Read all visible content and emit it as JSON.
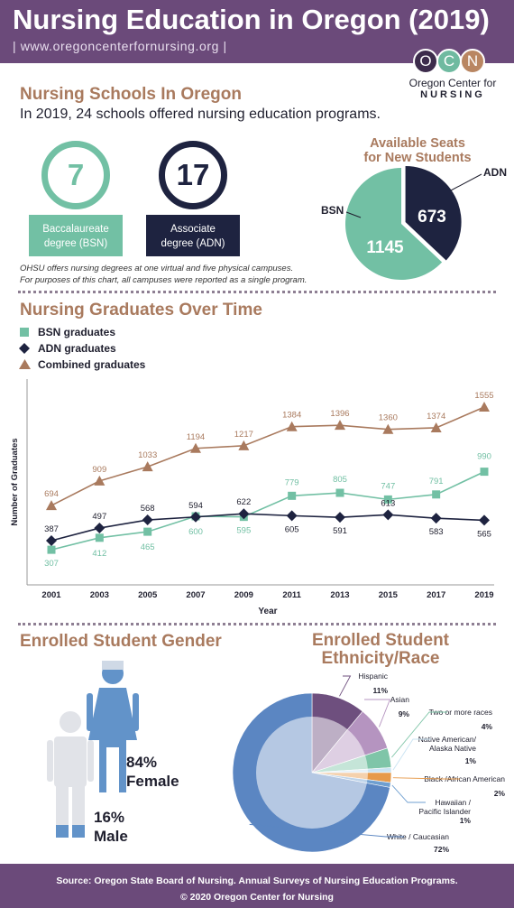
{
  "header": {
    "title": "Nursing Education in Oregon (2019)",
    "url": "| www.oregoncenterfornursing.org |"
  },
  "logo": {
    "letters": [
      "O",
      "C",
      "N"
    ],
    "line1": "Oregon Center for",
    "line2": "NURSING"
  },
  "schools": {
    "title": "Nursing Schools In Oregon",
    "subtitle": "In 2019, 24 schools offered nursing education programs.",
    "bsn_count": "7",
    "bsn_label_1": "Baccalaureate",
    "bsn_label_2": "degree (BSN)",
    "adn_count": "17",
    "adn_label_1": "Associate",
    "adn_label_2": "degree (ADN)",
    "note_1": "OHSU offers nursing degrees at one virtual and five physical campuses.",
    "note_2": "For purposes of this chart, all campuses were reported as a single program."
  },
  "seats": {
    "title_1": "Available Seats",
    "title_2": "for New Students"
  },
  "graduates": {
    "title": "Nursing Graduates Over Time",
    "legend": [
      "BSN graduates",
      "ADN graduates",
      "Combined graduates"
    ]
  },
  "gender": {
    "title": "Enrolled Student Gender",
    "female_pct": "84%",
    "female_label": "Female",
    "male_pct": "16%",
    "male_label": "Male"
  },
  "ethnicity": {
    "title_1": "Enrolled Student",
    "title_2": "Ethnicity/Race"
  },
  "footer": {
    "line1": "Source: Oregon State Board of Nursing. Annual Surveys of Nursing Education Programs.",
    "line2": "© 2020 Oregon Center for Nursing"
  },
  "colors": {
    "bsn": "#72c0a4",
    "adn": "#1e2340",
    "combined": "#a97a5e",
    "brand": "#6b4a7a"
  },
  "chart_data": [
    {
      "type": "pie",
      "title": "Available Seats for New Students",
      "labels": [
        "BSN",
        "ADN"
      ],
      "values": [
        1145,
        673
      ],
      "colors": [
        "#72c0a4",
        "#1e2340"
      ]
    },
    {
      "type": "line",
      "title": "Nursing Graduates Over Time",
      "xlabel": "Year",
      "ylabel": "Number of Graduates",
      "x": [
        "2001",
        "2003",
        "2005",
        "2007",
        "2009",
        "2011",
        "2013",
        "2015",
        "2017",
        "2019"
      ],
      "ylim": [
        0,
        1800
      ],
      "grid": false,
      "legend": "top-left",
      "series": [
        {
          "name": "BSN graduates",
          "marker": "square",
          "color": "#72c0a4",
          "values": [
            307,
            412,
            465,
            600,
            595,
            779,
            805,
            747,
            791,
            990
          ]
        },
        {
          "name": "ADN graduates",
          "marker": "diamond",
          "color": "#1e2340",
          "values": [
            387,
            497,
            568,
            594,
            622,
            605,
            591,
            613,
            583,
            565
          ]
        },
        {
          "name": "Combined graduates",
          "marker": "triangle",
          "color": "#a97a5e",
          "values": [
            694,
            909,
            1033,
            1194,
            1217,
            1384,
            1396,
            1360,
            1374,
            1555
          ]
        }
      ]
    },
    {
      "type": "pie",
      "title": "Enrolled Student Gender",
      "labels": [
        "Female",
        "Male"
      ],
      "values": [
        84,
        16
      ]
    },
    {
      "type": "pie",
      "title": "Enrolled Student Ethnicity/Race",
      "labels": [
        "Hispanic",
        "Asian",
        "Two or more races",
        "Native American/ Alaska Native",
        "Black /African American",
        "Hawaiian / Pacific Islander",
        "White / Caucasian"
      ],
      "values": [
        11,
        9,
        4,
        1,
        2,
        1,
        72
      ],
      "value_labels": [
        "11%",
        "9%",
        "4%",
        "1%",
        "2%",
        "1%",
        "72%"
      ],
      "colors": [
        "#6e4f7e",
        "#b594c0",
        "#7fc5a8",
        "#c9e3f2",
        "#e79a4a",
        "#6f9fd0",
        "#5b86c2"
      ]
    }
  ]
}
